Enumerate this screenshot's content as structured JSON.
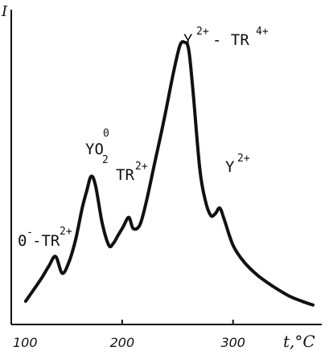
{
  "chart_data": {
    "type": "line",
    "ylabel": "I",
    "xlabel": "t,°C",
    "xlim": [
      100,
      380
    ],
    "x_ticks": [
      {
        "value": 100,
        "label": "100"
      },
      {
        "value": 200,
        "label": "200"
      },
      {
        "value": 300,
        "label": "300"
      }
    ],
    "grid": false,
    "series": [
      {
        "x": [
          113,
          120,
          128,
          134,
          140,
          146,
          152,
          158,
          164,
          168,
          172,
          176,
          182,
          188,
          192,
          196,
          201,
          206,
          210,
          216,
          222,
          230,
          238,
          246,
          252,
          256,
          260,
          264,
          270,
          275,
          280,
          284,
          288,
          292,
          300,
          310,
          322,
          336,
          350,
          362,
          372
        ],
        "y": [
          3,
          9,
          16,
          22,
          27,
          18,
          24,
          36,
          53,
          62,
          70,
          65,
          45,
          33,
          34,
          38,
          43,
          48,
          42,
          44,
          57,
          79,
          101,
          125,
          140,
          142,
          138,
          115,
          74,
          57,
          49,
          50,
          53,
          47,
          33,
          24,
          17,
          11,
          6,
          3,
          1
        ]
      }
    ],
    "annotations": [
      {
        "base": "0",
        "sup": "-",
        "rest": "-TR",
        "rest_sup": "2+"
      },
      {
        "base": "YO",
        "sub": "2",
        "sup": "0"
      },
      {
        "base": "TR",
        "sup": "2+"
      },
      {
        "base": "Y",
        "sup": "2+",
        "rest": "- TR",
        "rest_sup": "4+"
      },
      {
        "base": "Y",
        "sup": "2+"
      }
    ]
  }
}
